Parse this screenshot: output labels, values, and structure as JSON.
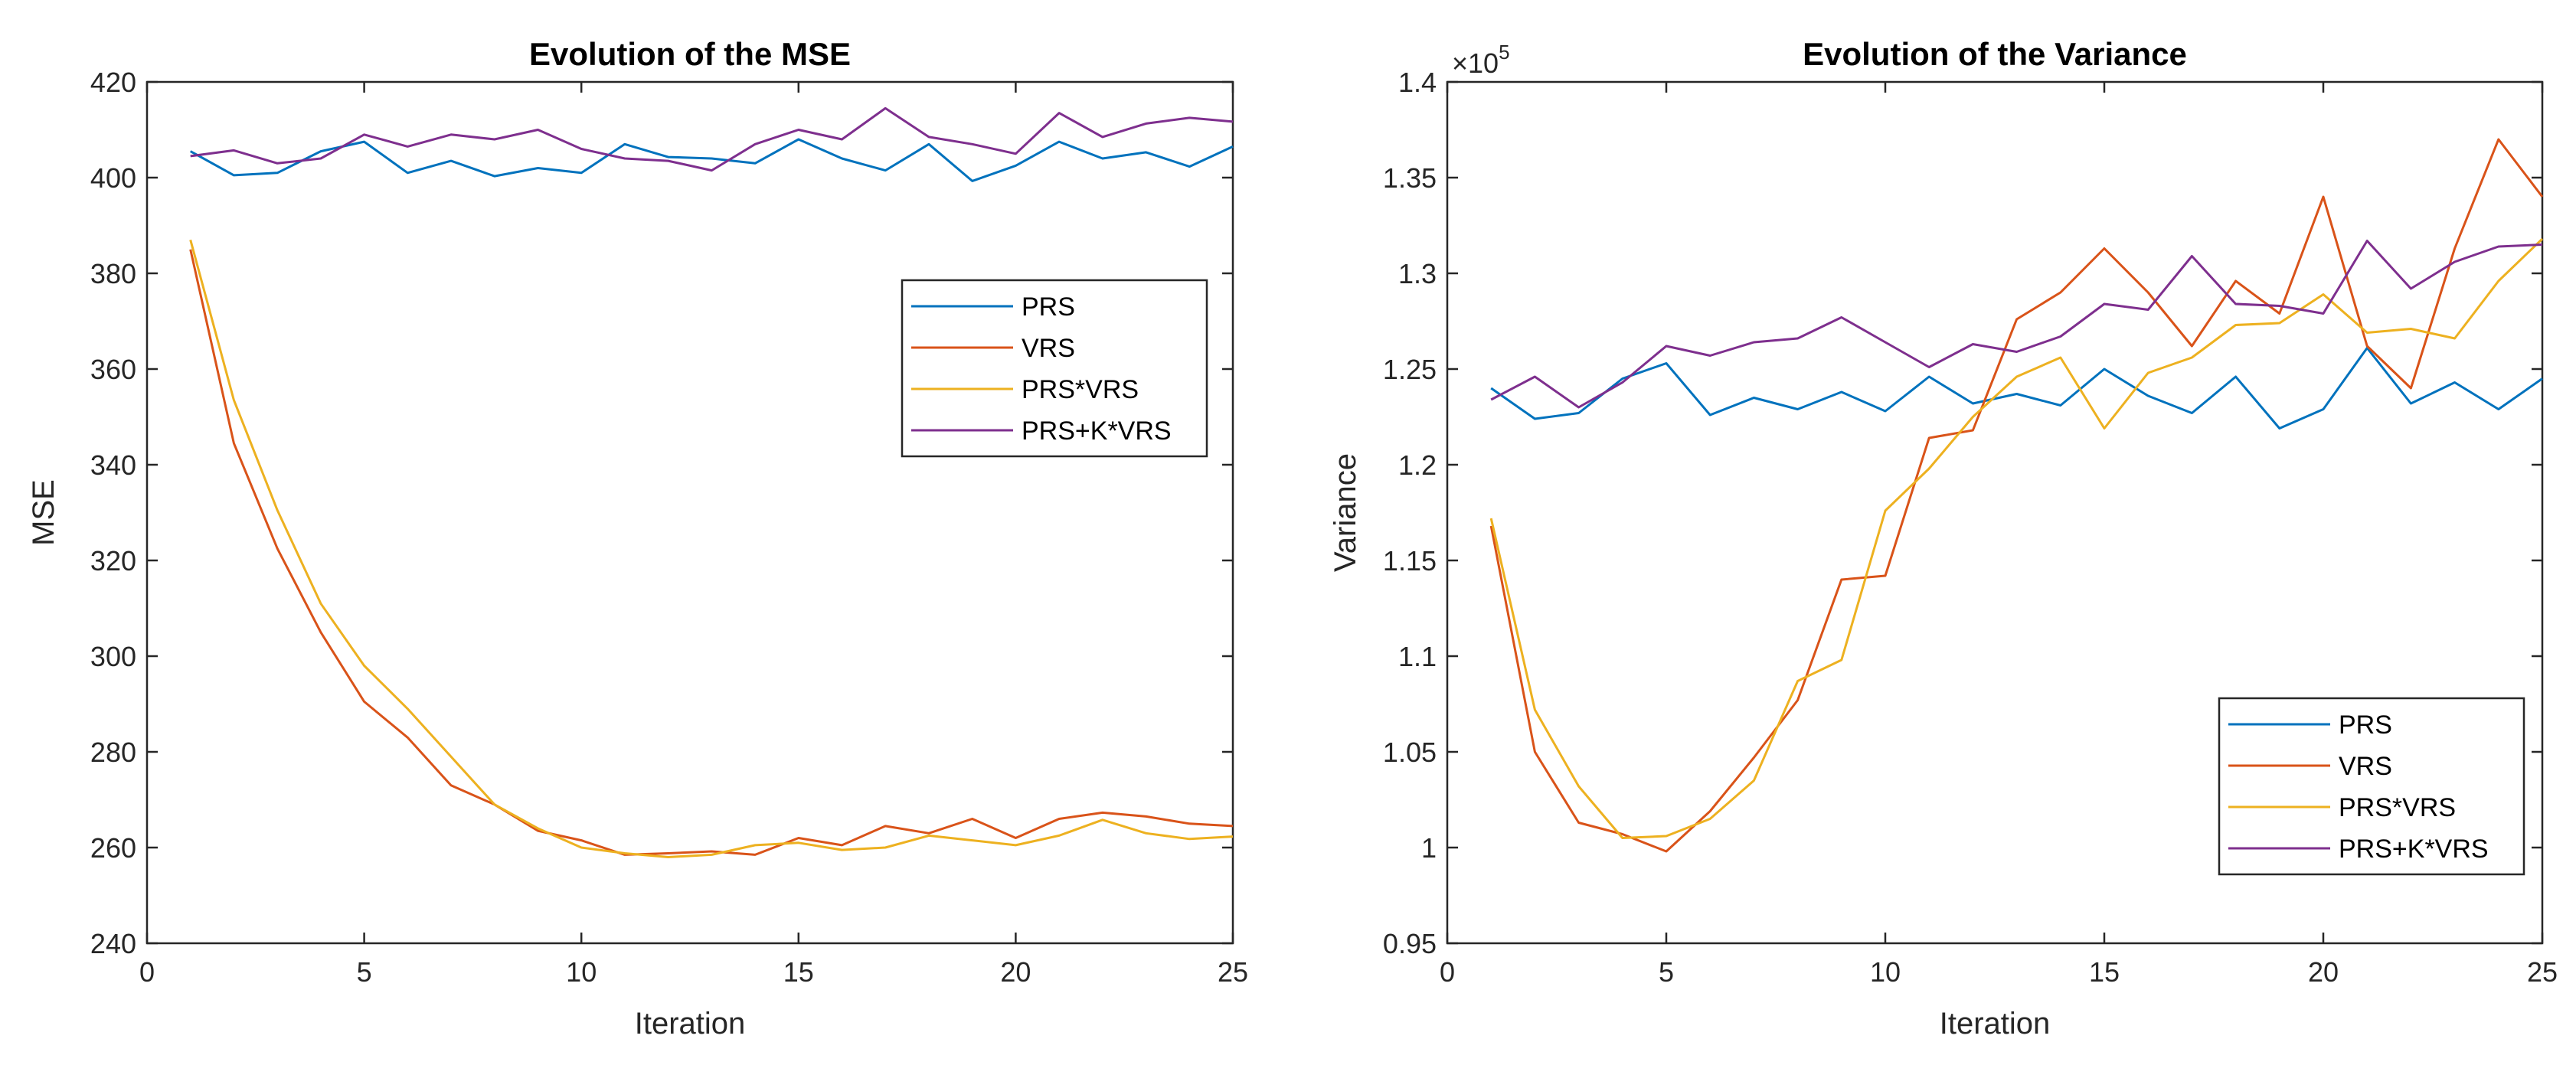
{
  "chart_data": [
    {
      "type": "line",
      "title": "Evolution of the MSE",
      "xlabel": "Iteration",
      "ylabel": "MSE",
      "xlim": [
        0,
        25
      ],
      "ylim": [
        240,
        420
      ],
      "xticks": [
        0,
        5,
        10,
        15,
        20,
        25
      ],
      "yticks": [
        240,
        260,
        280,
        300,
        320,
        340,
        360,
        380,
        400,
        420
      ],
      "xtick_labels": [
        "0",
        "5",
        "10",
        "15",
        "20",
        "25"
      ],
      "ytick_labels": [
        "240",
        "260",
        "280",
        "300",
        "320",
        "340",
        "360",
        "380",
        "400",
        "420"
      ],
      "legend_position": "center-right",
      "x": [
        1,
        2,
        3,
        4,
        5,
        6,
        7,
        8,
        9,
        10,
        11,
        12,
        13,
        14,
        15,
        16,
        17,
        18,
        19,
        20,
        21,
        22,
        23,
        24,
        25
      ],
      "series": [
        {
          "name": "PRS",
          "color": "#0072BD",
          "values": [
            405.5,
            400.5,
            401,
            405.5,
            407.5,
            401,
            403.5,
            400.3,
            402,
            401,
            407,
            404.3,
            404,
            403,
            408,
            404,
            401.5,
            407,
            399.3,
            402.5,
            407.5,
            404,
            405.3,
            402.3,
            406.5
          ]
        },
        {
          "name": "VRS",
          "color": "#D95319",
          "values": [
            385,
            344.5,
            322.5,
            305,
            290.5,
            283,
            273,
            269,
            263.5,
            261.5,
            258.5,
            258.8,
            259.2,
            258.5,
            262,
            260.5,
            264.5,
            263,
            266,
            262,
            266,
            267.3,
            266.5,
            265,
            264.5
          ]
        },
        {
          "name": "PRS*VRS",
          "color": "#EDB120",
          "values": [
            387,
            353.5,
            330.5,
            311,
            298,
            289,
            279,
            269,
            264,
            260,
            258.8,
            258,
            258.5,
            260.5,
            261,
            259.5,
            260,
            262.5,
            261.5,
            260.5,
            262.5,
            265.8,
            263,
            261.8,
            262.3
          ]
        },
        {
          "name": "PRS+K*VRS",
          "color": "#7E2F8E",
          "values": [
            404.5,
            405.7,
            403,
            404,
            409,
            406.5,
            409,
            408,
            410,
            406,
            404,
            403.5,
            401.5,
            407,
            410,
            408,
            414.5,
            408.5,
            407,
            405,
            413.5,
            408.5,
            411.3,
            412.5,
            411.7
          ]
        }
      ]
    },
    {
      "type": "line",
      "title": "Evolution of the Variance",
      "xlabel": "Iteration",
      "ylabel": "Variance",
      "multiplier": "×10",
      "multiplier_exponent": "5",
      "xlim": [
        0,
        25
      ],
      "ylim": [
        0.95,
        1.4
      ],
      "xticks": [
        0,
        5,
        10,
        15,
        20,
        25
      ],
      "yticks": [
        0.95,
        1.0,
        1.05,
        1.1,
        1.15,
        1.2,
        1.25,
        1.3,
        1.35,
        1.4
      ],
      "xtick_labels": [
        "0",
        "5",
        "10",
        "15",
        "20",
        "25"
      ],
      "ytick_labels": [
        "0.95",
        "1",
        "1.05",
        "1.1",
        "1.15",
        "1.2",
        "1.25",
        "1.3",
        "1.35",
        "1.4"
      ],
      "legend_position": "bottom-right",
      "x": [
        1,
        2,
        3,
        4,
        5,
        6,
        7,
        8,
        9,
        10,
        11,
        12,
        13,
        14,
        15,
        16,
        17,
        18,
        19,
        20,
        21,
        22,
        23,
        24,
        25
      ],
      "series": [
        {
          "name": "PRS",
          "color": "#0072BD",
          "values": [
            1.24,
            1.224,
            1.227,
            1.245,
            1.253,
            1.226,
            1.235,
            1.229,
            1.238,
            1.228,
            1.246,
            1.232,
            1.237,
            1.231,
            1.25,
            1.236,
            1.227,
            1.246,
            1.219,
            1.229,
            1.261,
            1.232,
            1.243,
            1.229,
            1.245
          ]
        },
        {
          "name": "VRS",
          "color": "#D95319",
          "values": [
            1.168,
            1.05,
            1.013,
            1.007,
            0.998,
            1.019,
            1.047,
            1.077,
            1.14,
            1.142,
            1.214,
            1.218,
            1.276,
            1.29,
            1.313,
            1.29,
            1.262,
            1.296,
            1.279,
            1.34,
            1.262,
            1.24,
            1.313,
            1.37,
            1.34
          ]
        },
        {
          "name": "PRS*VRS",
          "color": "#EDB120",
          "values": [
            1.172,
            1.072,
            1.032,
            1.005,
            1.006,
            1.015,
            1.035,
            1.087,
            1.098,
            1.176,
            1.198,
            1.225,
            1.246,
            1.256,
            1.219,
            1.248,
            1.256,
            1.273,
            1.274,
            1.289,
            1.269,
            1.271,
            1.266,
            1.296,
            1.318
          ]
        },
        {
          "name": "PRS+K*VRS",
          "color": "#7E2F8E",
          "values": [
            1.234,
            1.246,
            1.23,
            1.243,
            1.262,
            1.257,
            1.264,
            1.266,
            1.277,
            1.264,
            1.251,
            1.263,
            1.259,
            1.267,
            1.284,
            1.281,
            1.309,
            1.284,
            1.283,
            1.279,
            1.317,
            1.292,
            1.306,
            1.314,
            1.315
          ]
        }
      ]
    }
  ]
}
